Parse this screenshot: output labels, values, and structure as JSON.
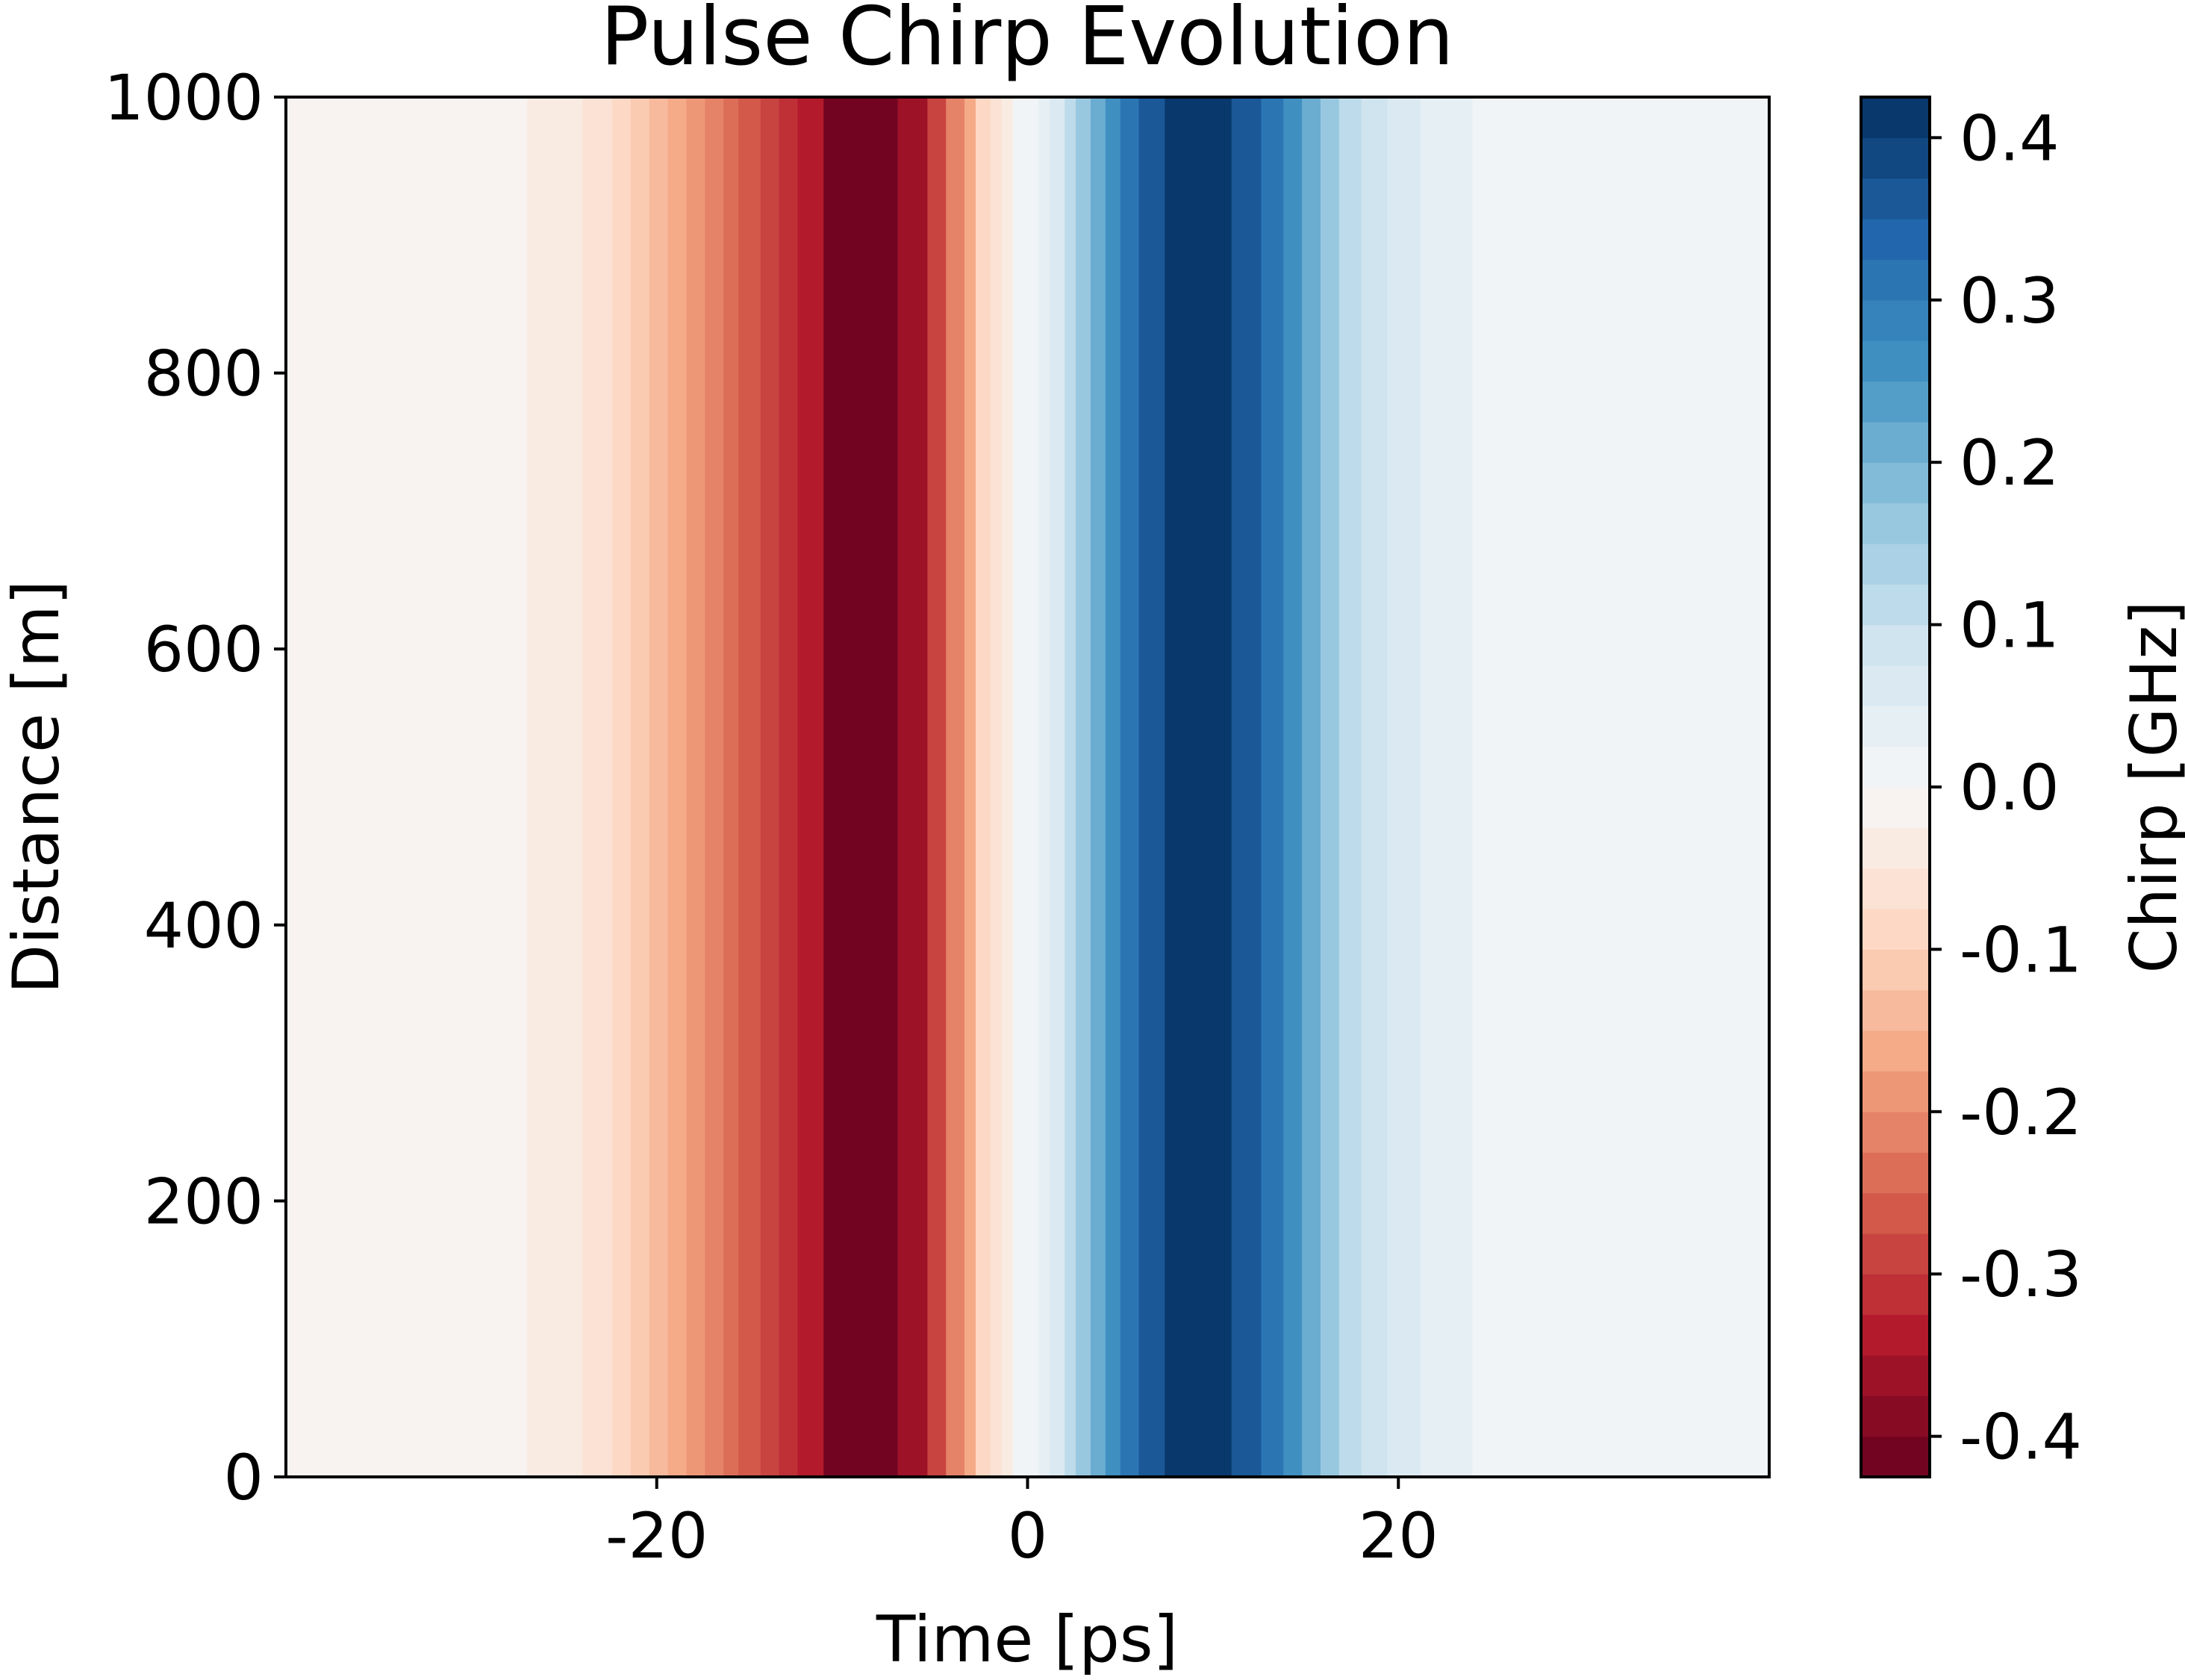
{
  "chart_data": {
    "type": "heatmap",
    "title": "Pulse Chirp Evolution",
    "xlabel": "Time [ps]",
    "ylabel": "Distance [m]",
    "xlim": [
      -40,
      40
    ],
    "ylim": [
      0,
      1000
    ],
    "xticks": [
      -20,
      0,
      20
    ],
    "xtick_labels": [
      "-20",
      "0",
      "20"
    ],
    "yticks": [
      0,
      200,
      400,
      600,
      800,
      1000
    ],
    "ytick_labels": [
      "0",
      "200",
      "400",
      "600",
      "800",
      "1000"
    ],
    "variation_along_y": "none",
    "colorbar": {
      "label": "Chirp [GHz]",
      "colormap": "RdBu",
      "range": [
        -0.425,
        0.425
      ],
      "levels": 34,
      "ticks": [
        -0.4,
        -0.3,
        -0.2,
        -0.1,
        0.0,
        0.1,
        0.2,
        0.3,
        0.4
      ],
      "tick_labels": [
        "-0.4",
        "-0.3",
        "-0.2",
        "-0.1",
        "0.0",
        "0.1",
        "0.2",
        "0.3",
        "0.4"
      ]
    },
    "chirp_profile": {
      "time_ps": [
        -40,
        -27,
        -26.9,
        -24,
        -23.9,
        -22.5,
        -22.4,
        -21.5,
        -21.4,
        -20.5,
        -20.4,
        -19.5,
        -19.4,
        -18.5,
        -18.4,
        -17.5,
        -17.4,
        -16.5,
        -16.4,
        -15.6,
        -15.5,
        -14.5,
        -14.4,
        -13.5,
        -13.4,
        -12.5,
        -12.4,
        -11,
        -10.9,
        -7,
        -6.9,
        -5.5,
        -5.4,
        -4.5,
        -4.4,
        -3.5,
        -3.4,
        -2.8,
        -2.7,
        -2.1,
        -2,
        -1.5,
        -1.4,
        -0.8,
        -0.7,
        0.6,
        0.7,
        1.2,
        1.3,
        1.9,
        2,
        2.6,
        2.7,
        3.4,
        3.5,
        4.2,
        4.3,
        5,
        5.1,
        6,
        6.1,
        7.3,
        7.4,
        11,
        11.1,
        12.5,
        12.6,
        13.7,
        13.8,
        14.8,
        14.9,
        15.8,
        15.9,
        16.8,
        16.9,
        17.9,
        18,
        19.3,
        19.4,
        21.2,
        21.3,
        23.9,
        24,
        26.9,
        27,
        40
      ],
      "chirp_ghz": [
        -0.013,
        -0.013,
        -0.038,
        -0.038,
        -0.063,
        -0.063,
        -0.088,
        -0.088,
        -0.113,
        -0.113,
        -0.138,
        -0.138,
        -0.163,
        -0.163,
        -0.188,
        -0.188,
        -0.213,
        -0.213,
        -0.238,
        -0.238,
        -0.263,
        -0.263,
        -0.288,
        -0.288,
        -0.313,
        -0.313,
        -0.35,
        -0.35,
        -0.41,
        -0.41,
        -0.36,
        -0.36,
        -0.3,
        -0.3,
        -0.22,
        -0.22,
        -0.16,
        -0.16,
        -0.1,
        -0.1,
        -0.06,
        -0.06,
        -0.03,
        -0.03,
        0.0,
        0.0,
        0.04,
        0.04,
        0.07,
        0.07,
        0.11,
        0.11,
        0.16,
        0.16,
        0.21,
        0.21,
        0.26,
        0.26,
        0.31,
        0.31,
        0.36,
        0.36,
        0.41,
        0.41,
        0.36,
        0.36,
        0.31,
        0.31,
        0.26,
        0.26,
        0.21,
        0.21,
        0.16,
        0.16,
        0.12,
        0.12,
        0.09,
        0.09,
        0.063,
        0.063,
        0.038,
        0.038,
        0.013,
        0.013,
        0.005,
        0.005
      ]
    }
  }
}
